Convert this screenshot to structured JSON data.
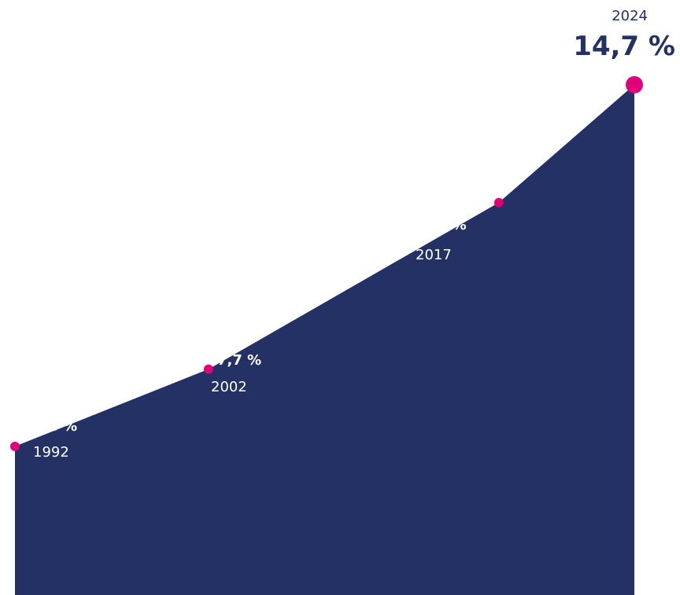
{
  "colors": {
    "area": "#233165",
    "marker": "#E0007A",
    "label_on_area": "#ffffff",
    "label_outside": "#233165"
  },
  "chart_data": {
    "type": "area",
    "title": "",
    "xlabel": "",
    "ylabel": "",
    "unit": "%",
    "x": [
      1992,
      2002,
      2017,
      2024
    ],
    "values": [
      5.8,
      7.7,
      11.8,
      14.7
    ],
    "labels": [
      "5,8 %",
      "7,7 %",
      "11,8 %",
      "14,7 %"
    ],
    "year_labels": [
      "1992",
      "2002",
      "2017",
      "2024"
    ],
    "grid": false,
    "legend": "none"
  }
}
